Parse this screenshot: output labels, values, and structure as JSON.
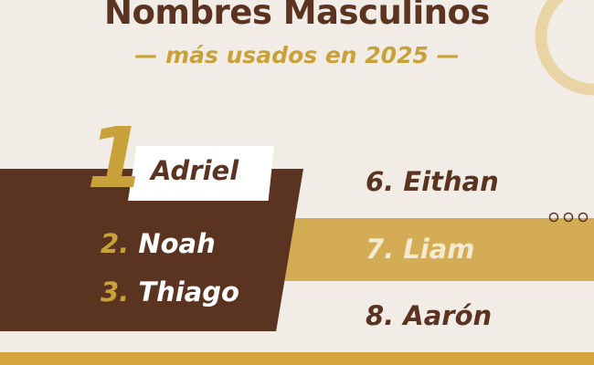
{
  "title": "Nombres Masculinos",
  "subtitle": "— más usados en 2025 —",
  "colors": {
    "brown": "#5a3420",
    "gold": "#c9a13a",
    "background": "#f1ede6",
    "band": "#d4ac55"
  },
  "top": {
    "rank": "1",
    "name": "Adriel"
  },
  "left_list": [
    {
      "rank": "2.",
      "name": "Noah"
    },
    {
      "rank": "3.",
      "name": "Thiago"
    }
  ],
  "right_list": [
    {
      "label": "6. Eithan"
    },
    {
      "label": "7. Liam"
    },
    {
      "label": "8. Aarón"
    }
  ],
  "decor": {
    "dots": "○○○"
  }
}
